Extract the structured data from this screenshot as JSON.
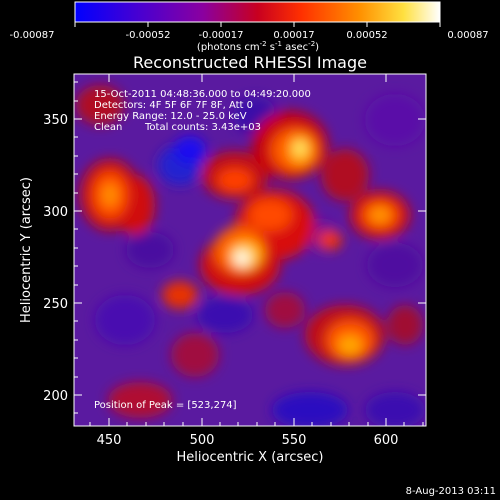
{
  "colorbar": {
    "ticks": [
      "-0.00087",
      "-0.00052",
      "-0.00017",
      "0.00017",
      "0.00052",
      "0.00087"
    ],
    "units_main": "(photons cm",
    "units_sup1": "-2",
    "units_mid1": " s",
    "units_sup2": "-1",
    "units_mid2": " asec",
    "units_sup3": "-2",
    "units_end": ")"
  },
  "title": "Reconstructed RHESSI Image",
  "annotations": {
    "time": "15-Oct-2011 04:48:36.000 to 04:49:20.000",
    "detectors": "Detectors: 4F 5F 6F 7F 8F, Att 0",
    "energy": "Energy Range: 12.0 - 25.0 keV",
    "clean": "Clean",
    "counts": "Total counts: 3.43e+03",
    "peak": "Position of Peak = [523,274]"
  },
  "axes": {
    "xlabel": "Heliocentric X (arcsec)",
    "ylabel": "Heliocentric Y (arcsec)",
    "xticks": [
      "450",
      "500",
      "550",
      "600"
    ],
    "yticks": [
      "200",
      "250",
      "300",
      "350"
    ]
  },
  "footer": {
    "date": "8-Aug-2013 03:11"
  },
  "colors": {
    "background": "#000000",
    "foreground": "#ffffff",
    "colormap": [
      "#0000ff",
      "#5a00c8",
      "#9b009b",
      "#d20000",
      "#ff5a00",
      "#ffa000",
      "#ffff80",
      "#ffffff"
    ]
  }
}
